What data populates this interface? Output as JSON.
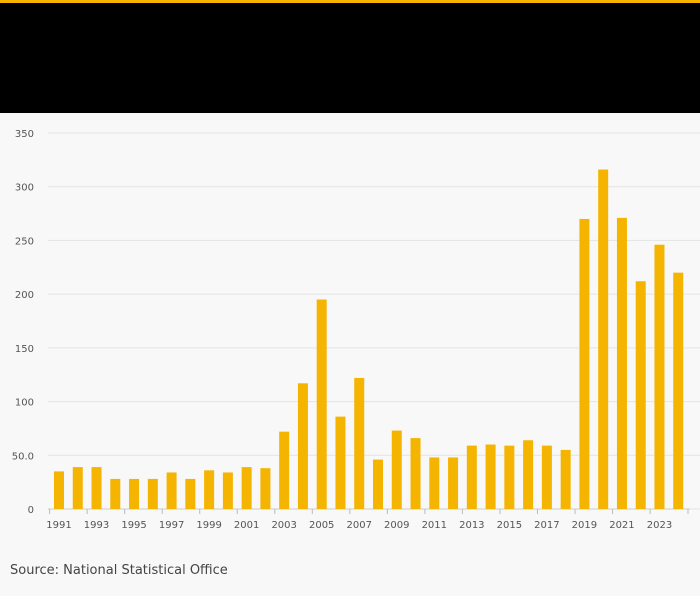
{
  "colors": {
    "accent": "#f5b400",
    "header_band": "#000000",
    "background": "#f8f8f8",
    "bar": "#f5b400",
    "gridline": "#e3e3e3",
    "tick_text": "#555555"
  },
  "source": "Source: National Statistical Office",
  "chart_data": {
    "type": "bar",
    "title": "",
    "xlabel": "",
    "ylabel": "",
    "ylim": [
      0,
      350
    ],
    "yticks": [
      0,
      50,
      100,
      150,
      200,
      250,
      300,
      350
    ],
    "ytick_labels": [
      "0",
      "50.0",
      "100",
      "150",
      "200",
      "250",
      "300",
      "350"
    ],
    "xtick_labels": [
      "1991",
      "1993",
      "1995",
      "1997",
      "1999",
      "2001",
      "2003",
      "2005",
      "2007",
      "2009",
      "2011",
      "2013",
      "2015",
      "2017",
      "2019",
      "2021",
      "2023"
    ],
    "grid": true,
    "categories": [
      "1991",
      "1992",
      "1993",
      "1994",
      "1995",
      "1996",
      "1997",
      "1998",
      "1999",
      "2000",
      "2001",
      "2002",
      "2003",
      "2004",
      "2005",
      "2006",
      "2007",
      "2008",
      "2009",
      "2010",
      "2011",
      "2012",
      "2013",
      "2014",
      "2015",
      "2016",
      "2017",
      "2018",
      "2019",
      "2020",
      "2021",
      "2022",
      "2023",
      "2024"
    ],
    "values": [
      35,
      39,
      39,
      28,
      28,
      28,
      34,
      28,
      36,
      34,
      39,
      38,
      72,
      117,
      195,
      86,
      122,
      46,
      73,
      66,
      48,
      48,
      59,
      60,
      59,
      64,
      59,
      55,
      270,
      316,
      271,
      212,
      246,
      220
    ]
  }
}
